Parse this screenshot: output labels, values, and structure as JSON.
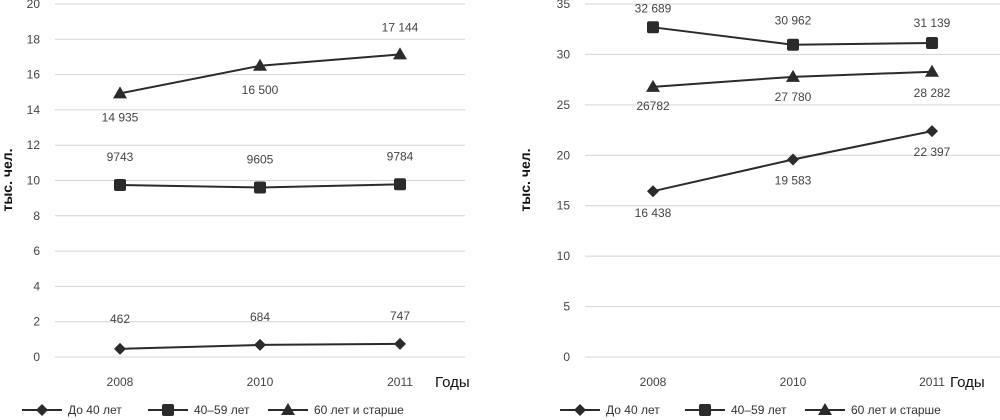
{
  "chart_data": [
    {
      "type": "line",
      "categories": [
        "2008",
        "2010",
        "2011"
      ],
      "ylabel": "тыс. чел.",
      "xlabel": "Годы",
      "ylim": [
        0,
        20
      ],
      "yticks": [
        0,
        2,
        4,
        6,
        8,
        10,
        12,
        14,
        16,
        18,
        20
      ],
      "grid": true,
      "legend_position": "bottom",
      "series": [
        {
          "name": "До 40 лет",
          "marker": "diamond",
          "values": [
            0.462,
            0.684,
            0.747
          ],
          "labels": [
            "462",
            "684",
            "747"
          ]
        },
        {
          "name": "40–59 лет",
          "marker": "square",
          "values": [
            9.743,
            9.605,
            9.784
          ],
          "labels": [
            "9743",
            "9605",
            "9784"
          ]
        },
        {
          "name": "60 лет и старше",
          "marker": "triangle",
          "values": [
            14.935,
            16.5,
            17.144
          ],
          "labels": [
            "14 935",
            "16 500",
            "17 144"
          ]
        }
      ]
    },
    {
      "type": "line",
      "categories": [
        "2008",
        "2010",
        "2011"
      ],
      "ylabel": "тыс. чел.",
      "xlabel": "Годы",
      "ylim": [
        0,
        35
      ],
      "yticks": [
        0,
        5,
        10,
        15,
        20,
        25,
        30,
        35
      ],
      "grid": true,
      "legend_position": "bottom",
      "series": [
        {
          "name": "До 40 лет",
          "marker": "diamond",
          "values": [
            16.438,
            19.583,
            22.397
          ],
          "labels": [
            "16 438",
            "19 583",
            "22 397"
          ]
        },
        {
          "name": "40–59 лет",
          "marker": "square",
          "values": [
            32.689,
            30.962,
            31.139
          ],
          "labels": [
            "32 689",
            "30 962",
            "31 139"
          ]
        },
        {
          "name": "60 лет и старше",
          "marker": "triangle",
          "values": [
            26.782,
            27.78,
            28.282
          ],
          "labels": [
            "26782",
            "27 780",
            "28 282"
          ]
        }
      ]
    }
  ]
}
